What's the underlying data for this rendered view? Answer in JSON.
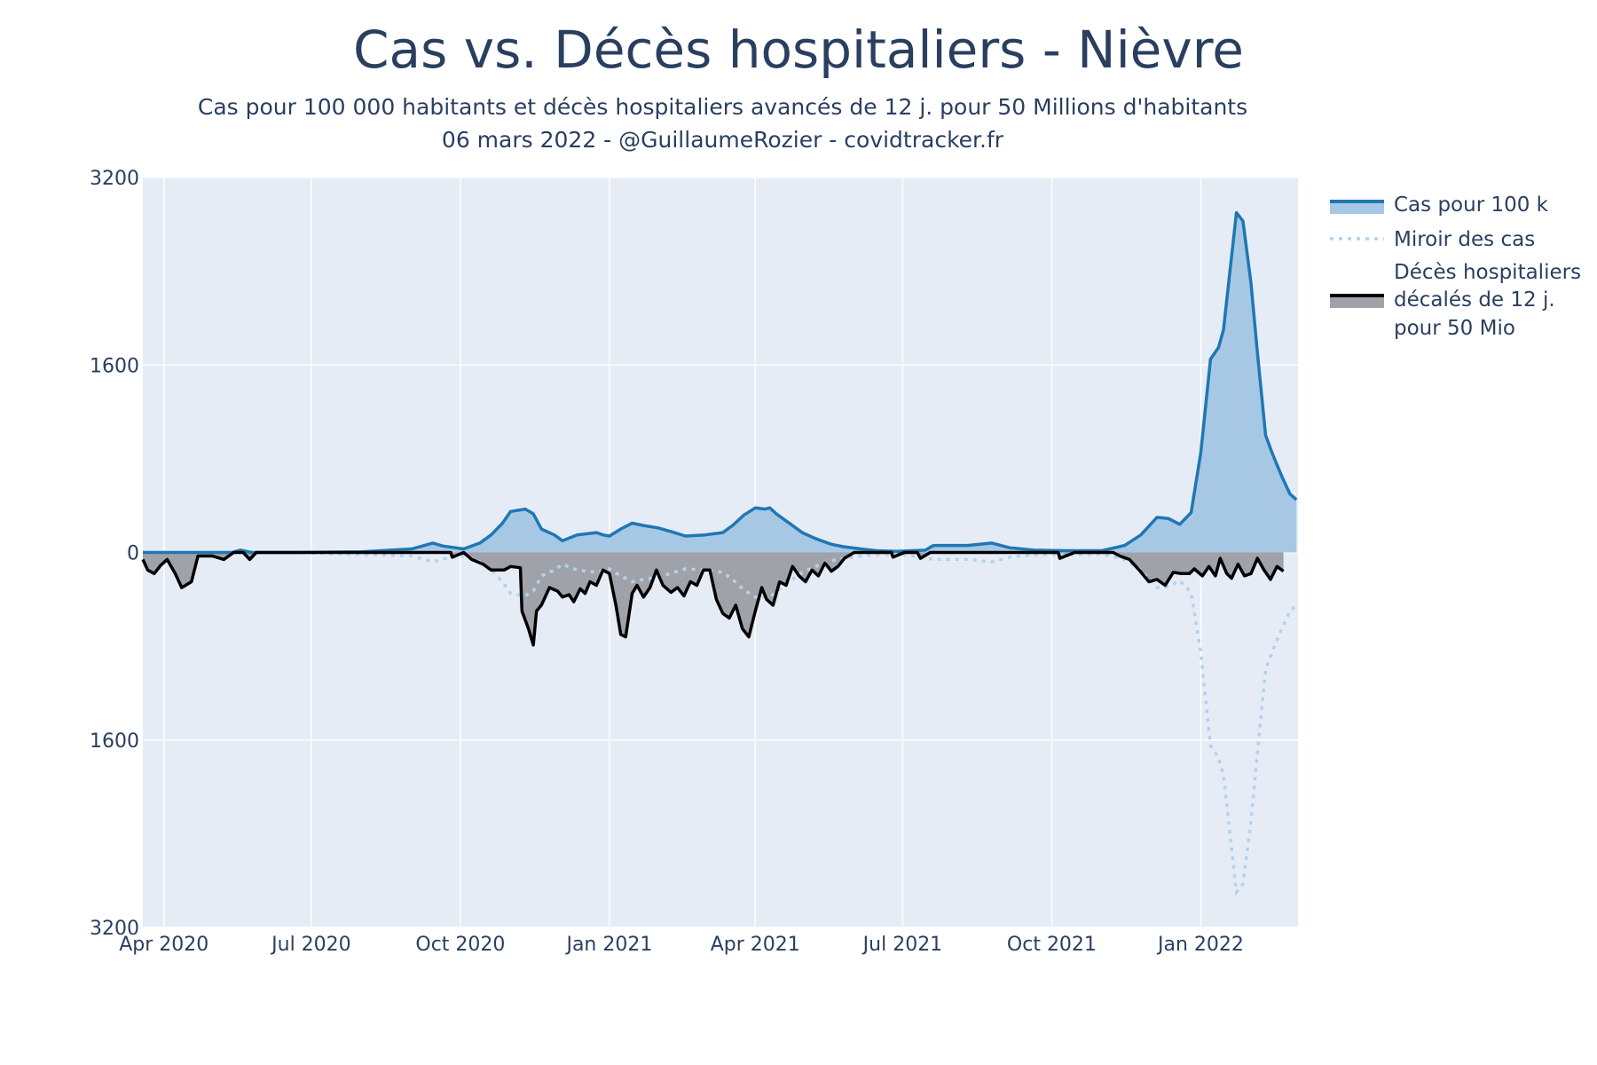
{
  "header": {
    "title": "Cas vs. Décès hospitaliers - Nièvre",
    "subtitle_line1": "Cas pour 100 000 habitants et décès hospitaliers avancés de 12 j. pour 50 Millions d'habitants",
    "subtitle_line2": "06 mars 2022 - @GuillaumeRozier - covidtracker.fr"
  },
  "chart_data": {
    "type": "area",
    "title": "Cas vs. Décès hospitaliers - Nièvre",
    "subtitle": "Cas pour 100 000 habitants et décès hospitaliers avancés de 12 j. pour 50 Millions d'habitants",
    "xlabel": "",
    "ylabel": "",
    "ylim": [
      -3200,
      3200
    ],
    "y_tick_values": [
      3200,
      1600,
      0,
      -1600,
      -3200
    ],
    "y_tick_labels": [
      "3200",
      "1600",
      "0",
      "1600",
      "3200"
    ],
    "x_ticks": [
      {
        "date": "2020-04-01",
        "label": "Apr 2020"
      },
      {
        "date": "2020-07-01",
        "label": "Jul 2020"
      },
      {
        "date": "2020-10-01",
        "label": "Oct 2020"
      },
      {
        "date": "2021-01-01",
        "label": "Jan 2021"
      },
      {
        "date": "2021-04-01",
        "label": "Apr 2021"
      },
      {
        "date": "2021-07-01",
        "label": "Jul 2021"
      },
      {
        "date": "2021-10-01",
        "label": "Oct 2021"
      },
      {
        "date": "2022-01-01",
        "label": "Jan 2022"
      }
    ],
    "xlim": [
      "2020-03-19",
      "2022-03-02"
    ],
    "grid": true,
    "legend_position": "right",
    "colors": {
      "plot_bg": "#e5ecf6",
      "grid": "#ffffff",
      "cases_line": "#1f77b4",
      "cases_fill": "#a6c8e4",
      "mirror_line": "#b4d2eb",
      "deaths_line": "#000000",
      "deaths_fill": "#a0a2aa"
    },
    "series": [
      {
        "name": "Cas pour 100 k",
        "style": "line+fill",
        "points": [
          [
            "2020-03-19",
            0
          ],
          [
            "2020-05-13",
            0
          ],
          [
            "2020-05-18",
            20
          ],
          [
            "2020-05-25",
            0
          ],
          [
            "2020-06-20",
            0
          ],
          [
            "2020-08-01",
            5
          ],
          [
            "2020-09-01",
            30
          ],
          [
            "2020-09-14",
            80
          ],
          [
            "2020-09-20",
            55
          ],
          [
            "2020-10-03",
            30
          ],
          [
            "2020-10-13",
            80
          ],
          [
            "2020-10-20",
            150
          ],
          [
            "2020-10-27",
            250
          ],
          [
            "2020-11-01",
            350
          ],
          [
            "2020-11-10",
            370
          ],
          [
            "2020-11-15",
            330
          ],
          [
            "2020-11-20",
            200
          ],
          [
            "2020-11-28",
            150
          ],
          [
            "2020-12-03",
            100
          ],
          [
            "2020-12-12",
            150
          ],
          [
            "2020-12-24",
            170
          ],
          [
            "2020-12-28",
            150
          ],
          [
            "2021-01-01",
            140
          ],
          [
            "2021-01-08",
            200
          ],
          [
            "2021-01-15",
            250
          ],
          [
            "2021-01-22",
            230
          ],
          [
            "2021-01-31",
            210
          ],
          [
            "2021-02-10",
            170
          ],
          [
            "2021-02-17",
            140
          ],
          [
            "2021-03-01",
            150
          ],
          [
            "2021-03-12",
            170
          ],
          [
            "2021-03-18",
            230
          ],
          [
            "2021-03-25",
            320
          ],
          [
            "2021-04-01",
            380
          ],
          [
            "2021-04-07",
            370
          ],
          [
            "2021-04-10",
            380
          ],
          [
            "2021-04-14",
            330
          ],
          [
            "2021-04-20",
            270
          ],
          [
            "2021-04-30",
            170
          ],
          [
            "2021-05-08",
            120
          ],
          [
            "2021-05-18",
            70
          ],
          [
            "2021-05-25",
            50
          ],
          [
            "2021-06-05",
            30
          ],
          [
            "2021-06-15",
            15
          ],
          [
            "2021-06-28",
            10
          ],
          [
            "2021-07-15",
            20
          ],
          [
            "2021-07-20",
            60
          ],
          [
            "2021-08-10",
            60
          ],
          [
            "2021-08-25",
            80
          ],
          [
            "2021-09-05",
            40
          ],
          [
            "2021-09-20",
            20
          ],
          [
            "2021-10-10",
            15
          ],
          [
            "2021-11-01",
            15
          ],
          [
            "2021-11-15",
            60
          ],
          [
            "2021-11-25",
            150
          ],
          [
            "2021-12-05",
            300
          ],
          [
            "2021-12-12",
            290
          ],
          [
            "2021-12-19",
            240
          ],
          [
            "2021-12-26",
            340
          ],
          [
            "2022-01-01",
            850
          ],
          [
            "2022-01-07",
            1650
          ],
          [
            "2022-01-12",
            1750
          ],
          [
            "2022-01-15",
            1900
          ],
          [
            "2022-01-19",
            2400
          ],
          [
            "2022-01-23",
            2900
          ],
          [
            "2022-01-27",
            2830
          ],
          [
            "2022-02-01",
            2300
          ],
          [
            "2022-02-05",
            1700
          ],
          [
            "2022-02-10",
            1000
          ],
          [
            "2022-02-14",
            850
          ],
          [
            "2022-02-20",
            650
          ],
          [
            "2022-02-25",
            500
          ],
          [
            "2022-03-01",
            450
          ]
        ]
      },
      {
        "name": "Miroir des cas",
        "style": "dotted",
        "points": [
          [
            "2020-03-19",
            0
          ],
          [
            "2020-06-20",
            0
          ],
          [
            "2020-09-01",
            -30
          ],
          [
            "2020-09-14",
            -80
          ],
          [
            "2020-09-20",
            -55
          ],
          [
            "2020-10-03",
            -30
          ],
          [
            "2020-10-13",
            -80
          ],
          [
            "2020-10-20",
            -150
          ],
          [
            "2020-10-27",
            -250
          ],
          [
            "2020-11-01",
            -350
          ],
          [
            "2020-11-10",
            -370
          ],
          [
            "2020-11-15",
            -330
          ],
          [
            "2020-11-20",
            -200
          ],
          [
            "2020-11-28",
            -150
          ],
          [
            "2020-12-03",
            -100
          ],
          [
            "2020-12-12",
            -150
          ],
          [
            "2020-12-24",
            -170
          ],
          [
            "2021-01-01",
            -140
          ],
          [
            "2021-01-08",
            -200
          ],
          [
            "2021-01-15",
            -250
          ],
          [
            "2021-01-22",
            -230
          ],
          [
            "2021-01-31",
            -210
          ],
          [
            "2021-02-10",
            -170
          ],
          [
            "2021-02-17",
            -140
          ],
          [
            "2021-03-01",
            -150
          ],
          [
            "2021-03-12",
            -170
          ],
          [
            "2021-03-18",
            -230
          ],
          [
            "2021-03-25",
            -320
          ],
          [
            "2021-04-01",
            -380
          ],
          [
            "2021-04-10",
            -380
          ],
          [
            "2021-04-20",
            -270
          ],
          [
            "2021-04-30",
            -170
          ],
          [
            "2021-05-08",
            -120
          ],
          [
            "2021-05-18",
            -70
          ],
          [
            "2021-06-05",
            -30
          ],
          [
            "2021-06-28",
            -10
          ],
          [
            "2021-07-20",
            -60
          ],
          [
            "2021-08-10",
            -60
          ],
          [
            "2021-08-25",
            -80
          ],
          [
            "2021-09-05",
            -40
          ],
          [
            "2021-09-20",
            -20
          ],
          [
            "2021-11-01",
            -15
          ],
          [
            "2021-11-15",
            -60
          ],
          [
            "2021-11-25",
            -150
          ],
          [
            "2021-12-05",
            -300
          ],
          [
            "2021-12-12",
            -290
          ],
          [
            "2021-12-19",
            -240
          ],
          [
            "2021-12-26",
            -340
          ],
          [
            "2022-01-01",
            -850
          ],
          [
            "2022-01-07",
            -1650
          ],
          [
            "2022-01-12",
            -1750
          ],
          [
            "2022-01-15",
            -1900
          ],
          [
            "2022-01-19",
            -2400
          ],
          [
            "2022-01-23",
            -2900
          ],
          [
            "2022-01-27",
            -2830
          ],
          [
            "2022-02-01",
            -2300
          ],
          [
            "2022-02-05",
            -1700
          ],
          [
            "2022-02-10",
            -1000
          ],
          [
            "2022-02-14",
            -850
          ],
          [
            "2022-02-20",
            -650
          ],
          [
            "2022-02-25",
            -500
          ],
          [
            "2022-03-01",
            -450
          ]
        ]
      },
      {
        "name": "Décès hospitaliers décalés de 12 j. pour 50 Mio",
        "style": "line+fill",
        "points": [
          [
            "2020-03-19",
            -60
          ],
          [
            "2020-03-22",
            -150
          ],
          [
            "2020-03-26",
            -180
          ],
          [
            "2020-03-30",
            -110
          ],
          [
            "2020-04-03",
            -60
          ],
          [
            "2020-04-08",
            -180
          ],
          [
            "2020-04-12",
            -300
          ],
          [
            "2020-04-18",
            -250
          ],
          [
            "2020-04-22",
            -30
          ],
          [
            "2020-05-01",
            -30
          ],
          [
            "2020-05-08",
            -60
          ],
          [
            "2020-05-14",
            0
          ],
          [
            "2020-05-20",
            0
          ],
          [
            "2020-05-24",
            -60
          ],
          [
            "2020-05-28",
            0
          ],
          [
            "2020-09-25",
            0
          ],
          [
            "2020-09-26",
            -40
          ],
          [
            "2020-10-03",
            0
          ],
          [
            "2020-10-08",
            -60
          ],
          [
            "2020-10-15",
            -100
          ],
          [
            "2020-10-20",
            -150
          ],
          [
            "2020-10-28",
            -150
          ],
          [
            "2020-11-01",
            -120
          ],
          [
            "2020-11-07",
            -130
          ],
          [
            "2020-11-08",
            -500
          ],
          [
            "2020-11-12",
            -650
          ],
          [
            "2020-11-15",
            -790
          ],
          [
            "2020-11-17",
            -500
          ],
          [
            "2020-11-20",
            -450
          ],
          [
            "2020-11-25",
            -300
          ],
          [
            "2020-11-30",
            -330
          ],
          [
            "2020-12-03",
            -380
          ],
          [
            "2020-12-07",
            -360
          ],
          [
            "2020-12-10",
            -420
          ],
          [
            "2020-12-14",
            -310
          ],
          [
            "2020-12-17",
            -350
          ],
          [
            "2020-12-20",
            -250
          ],
          [
            "2020-12-24",
            -280
          ],
          [
            "2020-12-28",
            -150
          ],
          [
            "2021-01-01",
            -180
          ],
          [
            "2021-01-05",
            -450
          ],
          [
            "2021-01-08",
            -700
          ],
          [
            "2021-01-11",
            -720
          ],
          [
            "2021-01-15",
            -350
          ],
          [
            "2021-01-18",
            -280
          ],
          [
            "2021-01-22",
            -380
          ],
          [
            "2021-01-26",
            -300
          ],
          [
            "2021-01-30",
            -150
          ],
          [
            "2021-02-03",
            -280
          ],
          [
            "2021-02-08",
            -340
          ],
          [
            "2021-02-12",
            -300
          ],
          [
            "2021-02-16",
            -370
          ],
          [
            "2021-02-20",
            -250
          ],
          [
            "2021-02-24",
            -280
          ],
          [
            "2021-02-28",
            -150
          ],
          [
            "2021-03-04",
            -150
          ],
          [
            "2021-03-08",
            -400
          ],
          [
            "2021-03-12",
            -520
          ],
          [
            "2021-03-16",
            -560
          ],
          [
            "2021-03-20",
            -450
          ],
          [
            "2021-03-24",
            -650
          ],
          [
            "2021-03-28",
            -720
          ],
          [
            "2021-04-01",
            -500
          ],
          [
            "2021-04-05",
            -300
          ],
          [
            "2021-04-08",
            -400
          ],
          [
            "2021-04-12",
            -450
          ],
          [
            "2021-04-16",
            -250
          ],
          [
            "2021-04-20",
            -280
          ],
          [
            "2021-04-24",
            -120
          ],
          [
            "2021-04-28",
            -200
          ],
          [
            "2021-05-02",
            -250
          ],
          [
            "2021-05-06",
            -150
          ],
          [
            "2021-05-10",
            -200
          ],
          [
            "2021-05-14",
            -90
          ],
          [
            "2021-05-18",
            -160
          ],
          [
            "2021-05-22",
            -120
          ],
          [
            "2021-05-26",
            -50
          ],
          [
            "2021-06-01",
            0
          ],
          [
            "2021-06-24",
            0
          ],
          [
            "2021-06-25",
            -40
          ],
          [
            "2021-07-02",
            0
          ],
          [
            "2021-07-10",
            0
          ],
          [
            "2021-07-12",
            -50
          ],
          [
            "2021-07-18",
            0
          ],
          [
            "2021-10-05",
            0
          ],
          [
            "2021-10-06",
            -50
          ],
          [
            "2021-10-15",
            0
          ],
          [
            "2021-11-08",
            0
          ],
          [
            "2021-11-12",
            -30
          ],
          [
            "2021-11-18",
            -60
          ],
          [
            "2021-11-24",
            -150
          ],
          [
            "2021-11-30",
            -250
          ],
          [
            "2021-12-05",
            -230
          ],
          [
            "2021-12-10",
            -280
          ],
          [
            "2021-12-15",
            -170
          ],
          [
            "2021-12-20",
            -180
          ],
          [
            "2021-12-25",
            -180
          ],
          [
            "2021-12-28",
            -140
          ],
          [
            "2022-01-02",
            -200
          ],
          [
            "2022-01-06",
            -120
          ],
          [
            "2022-01-10",
            -200
          ],
          [
            "2022-01-13",
            -50
          ],
          [
            "2022-01-17",
            -180
          ],
          [
            "2022-01-20",
            -220
          ],
          [
            "2022-01-24",
            -100
          ],
          [
            "2022-01-28",
            -200
          ],
          [
            "2022-02-01",
            -180
          ],
          [
            "2022-02-05",
            -50
          ],
          [
            "2022-02-09",
            -150
          ],
          [
            "2022-02-13",
            -230
          ],
          [
            "2022-02-17",
            -120
          ],
          [
            "2022-02-21",
            -160
          ]
        ]
      }
    ]
  },
  "legend": {
    "cases_label": "Cas pour 100 k",
    "mirror_label": "Miroir des cas",
    "deaths_label_line1": "Décès hospitaliers",
    "deaths_label_line2": "décalés de 12 j.",
    "deaths_label_line3": "pour 50 Mio"
  }
}
